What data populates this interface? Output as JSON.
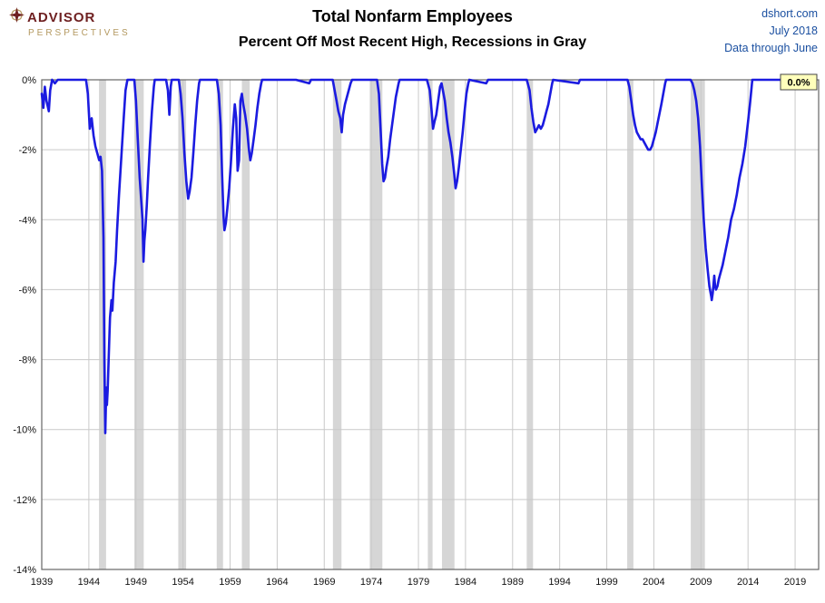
{
  "header": {
    "logo_line1": "ADVISOR",
    "logo_line2": "PERSPECTIVES",
    "title_line1": "Total Nonfarm Employees",
    "title_line2": "Percent Off Most Recent High, Recessions in Gray",
    "source": "dshort.com",
    "date": "July 2018",
    "data_through": "Data through June"
  },
  "annotation": {
    "latest_label": "0.0%"
  },
  "chart_data": {
    "type": "line",
    "title": "Total Nonfarm Employees",
    "subtitle": "Percent Off Most Recent High, Recessions in Gray",
    "xlabel": "",
    "ylabel": "",
    "x_range": [
      1939,
      2021.5
    ],
    "y_range": [
      -14,
      0
    ],
    "x_ticks": [
      1939,
      1944,
      1949,
      1954,
      1959,
      1964,
      1969,
      1974,
      1979,
      1984,
      1989,
      1994,
      1999,
      2004,
      2009,
      2014,
      2019
    ],
    "x_tick_labels": [
      "1939",
      "1944",
      "1949",
      "1954",
      "1959",
      "1964",
      "1969",
      "1974",
      "1979",
      "1984",
      "1989",
      "1994",
      "1999",
      "2004",
      "2009",
      "2014",
      "2019"
    ],
    "y_ticks": [
      0,
      -2,
      -4,
      -6,
      -8,
      -10,
      -12,
      -14
    ],
    "y_tick_labels": [
      "0%",
      "-2%",
      "-4%",
      "-6%",
      "-8%",
      "-10%",
      "-12%",
      "-14%"
    ],
    "grid": true,
    "line_color": "#1b1be0",
    "recession_color": "#d6d6d6",
    "grid_color": "#c9c9c9",
    "border_color": "#666666",
    "annotation_fill": "#ffffbb",
    "recessions": [
      [
        1945.08,
        1945.83
      ],
      [
        1948.83,
        1949.83
      ],
      [
        1953.5,
        1954.33
      ],
      [
        1957.58,
        1958.25
      ],
      [
        1960.25,
        1961.08
      ],
      [
        1969.92,
        1970.83
      ],
      [
        1973.83,
        1975.17
      ],
      [
        1980.0,
        1980.5
      ],
      [
        1981.5,
        1982.83
      ],
      [
        1990.5,
        1991.17
      ],
      [
        2001.17,
        2001.83
      ],
      [
        2007.92,
        2009.42
      ]
    ],
    "series": [
      {
        "name": "Percent off most recent high",
        "points": [
          [
            1939.0,
            -0.4
          ],
          [
            1939.17,
            -0.8
          ],
          [
            1939.33,
            -0.2
          ],
          [
            1939.5,
            -0.6
          ],
          [
            1939.75,
            -0.9
          ],
          [
            1939.9,
            -0.3
          ],
          [
            1940.1,
            0
          ],
          [
            1940.4,
            -0.1
          ],
          [
            1940.7,
            0
          ],
          [
            1941.5,
            0
          ],
          [
            1942.5,
            0
          ],
          [
            1943.7,
            0
          ],
          [
            1943.9,
            -0.4
          ],
          [
            1944.1,
            -1.4
          ],
          [
            1944.3,
            -1.1
          ],
          [
            1944.5,
            -1.6
          ],
          [
            1944.7,
            -1.9
          ],
          [
            1944.9,
            -2.1
          ],
          [
            1945.1,
            -2.3
          ],
          [
            1945.25,
            -2.2
          ],
          [
            1945.4,
            -2.6
          ],
          [
            1945.55,
            -4.5
          ],
          [
            1945.65,
            -8.0
          ],
          [
            1945.75,
            -10.1
          ],
          [
            1945.85,
            -8.8
          ],
          [
            1945.92,
            -9.3
          ],
          [
            1946.0,
            -8.9
          ],
          [
            1946.1,
            -8.0
          ],
          [
            1946.25,
            -6.8
          ],
          [
            1946.4,
            -6.3
          ],
          [
            1946.5,
            -6.6
          ],
          [
            1946.65,
            -5.8
          ],
          [
            1946.85,
            -5.2
          ],
          [
            1947.0,
            -4.3
          ],
          [
            1947.2,
            -3.3
          ],
          [
            1947.45,
            -2.2
          ],
          [
            1947.7,
            -1.1
          ],
          [
            1947.9,
            -0.3
          ],
          [
            1948.1,
            0
          ],
          [
            1948.83,
            0
          ],
          [
            1949.0,
            -0.6
          ],
          [
            1949.2,
            -1.7
          ],
          [
            1949.4,
            -2.8
          ],
          [
            1949.6,
            -3.6
          ],
          [
            1949.7,
            -4.0
          ],
          [
            1949.8,
            -5.2
          ],
          [
            1949.9,
            -4.6
          ],
          [
            1950.0,
            -4.3
          ],
          [
            1950.15,
            -3.6
          ],
          [
            1950.3,
            -2.8
          ],
          [
            1950.5,
            -1.8
          ],
          [
            1950.7,
            -0.9
          ],
          [
            1950.9,
            -0.2
          ],
          [
            1951.0,
            0
          ],
          [
            1952.2,
            0
          ],
          [
            1952.4,
            -0.3
          ],
          [
            1952.55,
            -1.0
          ],
          [
            1952.7,
            -0.2
          ],
          [
            1952.8,
            0
          ],
          [
            1953.55,
            0
          ],
          [
            1953.75,
            -0.4
          ],
          [
            1953.95,
            -1.1
          ],
          [
            1954.15,
            -2.1
          ],
          [
            1954.35,
            -2.9
          ],
          [
            1954.55,
            -3.4
          ],
          [
            1954.7,
            -3.2
          ],
          [
            1954.9,
            -2.8
          ],
          [
            1955.1,
            -2.1
          ],
          [
            1955.3,
            -1.3
          ],
          [
            1955.5,
            -0.6
          ],
          [
            1955.7,
            -0.1
          ],
          [
            1955.8,
            0
          ],
          [
            1957.6,
            0
          ],
          [
            1957.8,
            -0.4
          ],
          [
            1958.0,
            -1.3
          ],
          [
            1958.15,
            -2.7
          ],
          [
            1958.3,
            -3.9
          ],
          [
            1958.4,
            -4.3
          ],
          [
            1958.55,
            -4.1
          ],
          [
            1958.7,
            -3.7
          ],
          [
            1958.9,
            -3.1
          ],
          [
            1959.1,
            -2.3
          ],
          [
            1959.3,
            -1.4
          ],
          [
            1959.5,
            -0.7
          ],
          [
            1959.65,
            -1.1
          ],
          [
            1959.8,
            -2.6
          ],
          [
            1959.95,
            -2.3
          ],
          [
            1960.1,
            -0.6
          ],
          [
            1960.25,
            -0.4
          ],
          [
            1960.4,
            -0.7
          ],
          [
            1960.6,
            -1.0
          ],
          [
            1960.8,
            -1.4
          ],
          [
            1961.0,
            -2.0
          ],
          [
            1961.15,
            -2.3
          ],
          [
            1961.3,
            -2.1
          ],
          [
            1961.5,
            -1.7
          ],
          [
            1961.7,
            -1.3
          ],
          [
            1961.9,
            -0.8
          ],
          [
            1962.1,
            -0.4
          ],
          [
            1962.3,
            -0.1
          ],
          [
            1962.4,
            0
          ],
          [
            1964.0,
            0
          ],
          [
            1966.0,
            0
          ],
          [
            1967.4,
            -0.1
          ],
          [
            1967.6,
            0
          ],
          [
            1969.9,
            0
          ],
          [
            1970.1,
            -0.3
          ],
          [
            1970.3,
            -0.6
          ],
          [
            1970.5,
            -0.9
          ],
          [
            1970.7,
            -1.1
          ],
          [
            1970.85,
            -1.5
          ],
          [
            1971.0,
            -1.0
          ],
          [
            1971.2,
            -0.7
          ],
          [
            1971.5,
            -0.4
          ],
          [
            1971.8,
            -0.1
          ],
          [
            1971.95,
            0
          ],
          [
            1973.0,
            0
          ],
          [
            1974.6,
            0
          ],
          [
            1974.8,
            -0.4
          ],
          [
            1975.0,
            -1.5
          ],
          [
            1975.15,
            -2.4
          ],
          [
            1975.3,
            -2.9
          ],
          [
            1975.45,
            -2.8
          ],
          [
            1975.6,
            -2.5
          ],
          [
            1975.8,
            -2.2
          ],
          [
            1976.0,
            -1.7
          ],
          [
            1976.3,
            -1.1
          ],
          [
            1976.6,
            -0.5
          ],
          [
            1976.9,
            -0.1
          ],
          [
            1977.0,
            0
          ],
          [
            1978.5,
            0
          ],
          [
            1979.9,
            0
          ],
          [
            1980.2,
            -0.3
          ],
          [
            1980.4,
            -0.9
          ],
          [
            1980.55,
            -1.4
          ],
          [
            1980.7,
            -1.2
          ],
          [
            1980.9,
            -1.0
          ],
          [
            1981.1,
            -0.6
          ],
          [
            1981.3,
            -0.2
          ],
          [
            1981.45,
            -0.1
          ],
          [
            1981.6,
            -0.3
          ],
          [
            1981.8,
            -0.6
          ],
          [
            1982.0,
            -1.1
          ],
          [
            1982.2,
            -1.5
          ],
          [
            1982.4,
            -1.8
          ],
          [
            1982.6,
            -2.2
          ],
          [
            1982.8,
            -2.7
          ],
          [
            1982.95,
            -3.1
          ],
          [
            1983.1,
            -2.9
          ],
          [
            1983.3,
            -2.5
          ],
          [
            1983.5,
            -2.0
          ],
          [
            1983.7,
            -1.5
          ],
          [
            1983.9,
            -0.9
          ],
          [
            1984.1,
            -0.4
          ],
          [
            1984.3,
            -0.1
          ],
          [
            1984.4,
            0
          ],
          [
            1986.2,
            -0.1
          ],
          [
            1986.4,
            0
          ],
          [
            1988.0,
            0
          ],
          [
            1990.5,
            0
          ],
          [
            1990.8,
            -0.3
          ],
          [
            1991.0,
            -0.8
          ],
          [
            1991.2,
            -1.2
          ],
          [
            1991.4,
            -1.5
          ],
          [
            1991.6,
            -1.4
          ],
          [
            1991.8,
            -1.3
          ],
          [
            1992.0,
            -1.4
          ],
          [
            1992.2,
            -1.3
          ],
          [
            1992.4,
            -1.1
          ],
          [
            1992.6,
            -0.9
          ],
          [
            1992.8,
            -0.7
          ],
          [
            1993.0,
            -0.4
          ],
          [
            1993.2,
            -0.1
          ],
          [
            1993.3,
            0
          ],
          [
            1996.0,
            -0.1
          ],
          [
            1996.15,
            0
          ],
          [
            1998.0,
            0
          ],
          [
            2001.2,
            0
          ],
          [
            2001.4,
            -0.2
          ],
          [
            2001.6,
            -0.6
          ],
          [
            2001.8,
            -1.0
          ],
          [
            2002.0,
            -1.3
          ],
          [
            2002.2,
            -1.5
          ],
          [
            2002.4,
            -1.6
          ],
          [
            2002.6,
            -1.7
          ],
          [
            2002.8,
            -1.7
          ],
          [
            2003.0,
            -1.8
          ],
          [
            2003.2,
            -1.9
          ],
          [
            2003.4,
            -2.0
          ],
          [
            2003.6,
            -2.0
          ],
          [
            2003.8,
            -1.9
          ],
          [
            2004.0,
            -1.7
          ],
          [
            2004.2,
            -1.5
          ],
          [
            2004.5,
            -1.1
          ],
          [
            2004.8,
            -0.7
          ],
          [
            2005.0,
            -0.4
          ],
          [
            2005.2,
            -0.1
          ],
          [
            2005.3,
            0
          ],
          [
            2006.5,
            0
          ],
          [
            2007.9,
            0
          ],
          [
            2008.1,
            -0.1
          ],
          [
            2008.3,
            -0.3
          ],
          [
            2008.5,
            -0.6
          ],
          [
            2008.7,
            -1.1
          ],
          [
            2008.9,
            -1.9
          ],
          [
            2009.1,
            -3.0
          ],
          [
            2009.3,
            -4.0
          ],
          [
            2009.5,
            -4.8
          ],
          [
            2009.7,
            -5.4
          ],
          [
            2009.9,
            -5.9
          ],
          [
            2010.1,
            -6.2
          ],
          [
            2010.15,
            -6.3
          ],
          [
            2010.25,
            -6.1
          ],
          [
            2010.35,
            -5.8
          ],
          [
            2010.42,
            -5.6
          ],
          [
            2010.5,
            -5.9
          ],
          [
            2010.6,
            -6.0
          ],
          [
            2010.75,
            -5.9
          ],
          [
            2010.9,
            -5.7
          ],
          [
            2011.1,
            -5.5
          ],
          [
            2011.3,
            -5.3
          ],
          [
            2011.6,
            -4.9
          ],
          [
            2011.9,
            -4.5
          ],
          [
            2012.2,
            -4.0
          ],
          [
            2012.5,
            -3.7
          ],
          [
            2012.8,
            -3.3
          ],
          [
            2013.1,
            -2.8
          ],
          [
            2013.4,
            -2.4
          ],
          [
            2013.7,
            -1.9
          ],
          [
            2014.0,
            -1.2
          ],
          [
            2014.2,
            -0.7
          ],
          [
            2014.35,
            -0.3
          ],
          [
            2014.45,
            0
          ],
          [
            2015.5,
            0
          ],
          [
            2016.5,
            0
          ],
          [
            2017.5,
            0
          ],
          [
            2018.5,
            0
          ]
        ]
      }
    ]
  }
}
